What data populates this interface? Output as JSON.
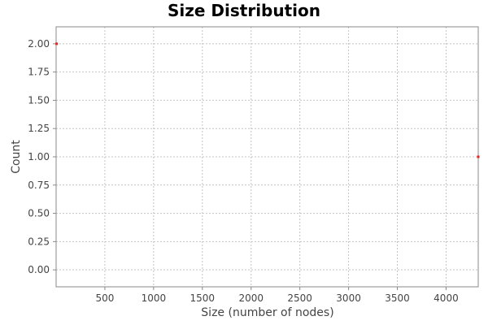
{
  "chart_data": {
    "type": "scatter",
    "title": "Size Distribution",
    "xlabel": "Size (number of nodes)",
    "ylabel": "Count",
    "xlim": [
      0,
      4330
    ],
    "ylim": [
      -0.15,
      2.15
    ],
    "x_ticks": [
      500,
      1000,
      1500,
      2000,
      2500,
      3000,
      3500,
      4000
    ],
    "x_tick_labels": [
      "500",
      "1000",
      "1500",
      "2000",
      "2500",
      "3000",
      "3500",
      "4000"
    ],
    "y_ticks": [
      0,
      0.25,
      0.5,
      0.75,
      1.0,
      1.25,
      1.5,
      1.75,
      2.0
    ],
    "y_tick_labels": [
      "0.00",
      "0.25",
      "0.50",
      "0.75",
      "1.00",
      "1.25",
      "1.50",
      "1.75",
      "2.00"
    ],
    "grid": true,
    "series": [
      {
        "points": [
          {
            "x": 5,
            "y": 2
          },
          {
            "x": 4330,
            "y": 1
          }
        ],
        "color": "#e8231f"
      }
    ],
    "colors": {
      "grid": "#c4c4c4",
      "axis": "#888888",
      "plot_background": "#ffffff"
    }
  }
}
